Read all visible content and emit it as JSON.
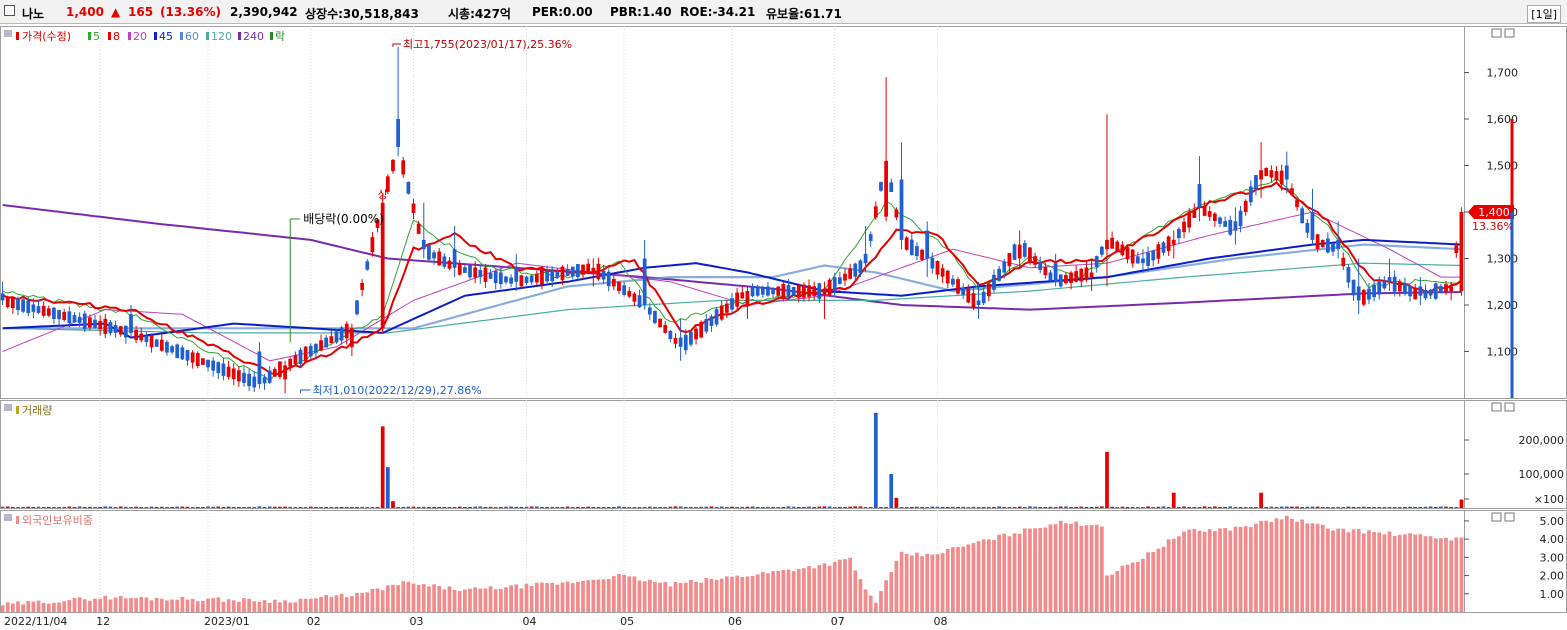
{
  "header": {
    "name": "나노",
    "price": "1,400",
    "change_arrow": "▲",
    "change": "165",
    "change_pct": "(13.36%)",
    "volume": "2,390,942",
    "listed_shares": "상장수:30,518,843",
    "market_cap": "시총:427억",
    "per": "PER:0.00",
    "pbr": "PBR:1.40",
    "roe": "ROE:-34.21",
    "float_ratio": "유보율:61.71",
    "period": "[1일]"
  },
  "colors": {
    "up": "#e60000",
    "down": "#1f5fd0",
    "ma5": "#2ea82e",
    "ma8": "#e60000",
    "ma20": "#c040c0",
    "ma45": "#0a1fc8",
    "ma60": "#5a8ad0",
    "ma120": "#4aaea0",
    "ma240": "#7a2ab0",
    "foreign": "#f28c8c"
  },
  "chart_data": [
    {
      "type": "candlestick",
      "legend_title": "가격(수정)",
      "legend": [
        "5",
        "8",
        "20",
        "45",
        "60",
        "120",
        "240",
        "락"
      ],
      "y_ticks": [
        "1,100",
        "1,200",
        "1,300",
        "1,400",
        "1,500",
        "1,600",
        "1,700"
      ],
      "ylim": [
        1000,
        1800
      ],
      "x_ticks": [
        "2022/11/04",
        "12",
        "2023/01",
        "02",
        "03",
        "04",
        "05",
        "06",
        "07",
        "08"
      ],
      "annotations": {
        "high": "최고1,755(2023/01/17),25.36%",
        "low": "최저1,010(2022/12/29),27.86%",
        "dividend": "배당락(0.00%)",
        "limit_up": "상",
        "last_price": "1,400",
        "last_pct": "13.36%"
      },
      "ohlc_keypoints": [
        [
          0,
          1225,
          1250,
          1200,
          1210
        ],
        [
          25,
          1180,
          1200,
          1130,
          1140
        ],
        [
          50,
          1100,
          1120,
          1020,
          1030
        ],
        [
          55,
          1040,
          1080,
          1010,
          1070
        ],
        [
          68,
          1110,
          1160,
          1090,
          1150
        ],
        [
          74,
          1150,
          1440,
          1140,
          1420
        ],
        [
          77,
          1600,
          1755,
          1520,
          1540
        ],
        [
          82,
          1340,
          1420,
          1300,
          1320
        ],
        [
          88,
          1320,
          1370,
          1260,
          1280
        ],
        [
          100,
          1280,
          1310,
          1230,
          1250
        ],
        [
          115,
          1270,
          1300,
          1240,
          1280
        ],
        [
          125,
          1300,
          1340,
          1190,
          1200
        ],
        [
          132,
          1130,
          1170,
          1080,
          1110
        ],
        [
          145,
          1200,
          1240,
          1170,
          1230
        ],
        [
          160,
          1220,
          1250,
          1170,
          1230
        ],
        [
          168,
          1310,
          1370,
          1270,
          1290
        ],
        [
          172,
          1390,
          1690,
          1380,
          1510
        ],
        [
          175,
          1470,
          1550,
          1320,
          1340
        ],
        [
          180,
          1360,
          1380,
          1260,
          1300
        ],
        [
          190,
          1210,
          1250,
          1170,
          1200
        ],
        [
          198,
          1300,
          1360,
          1280,
          1330
        ],
        [
          205,
          1290,
          1310,
          1240,
          1250
        ],
        [
          212,
          1260,
          1300,
          1230,
          1270
        ],
        [
          215,
          1320,
          1610,
          1240,
          1340
        ],
        [
          222,
          1300,
          1320,
          1270,
          1290
        ],
        [
          228,
          1330,
          1360,
          1300,
          1340
        ],
        [
          233,
          1460,
          1520,
          1380,
          1410
        ],
        [
          240,
          1380,
          1410,
          1330,
          1360
        ],
        [
          245,
          1470,
          1550,
          1430,
          1490
        ],
        [
          250,
          1500,
          1530,
          1440,
          1470
        ],
        [
          255,
          1400,
          1450,
          1330,
          1340
        ],
        [
          260,
          1340,
          1380,
          1300,
          1320
        ],
        [
          264,
          1240,
          1300,
          1180,
          1210
        ],
        [
          270,
          1260,
          1300,
          1230,
          1250
        ],
        [
          276,
          1240,
          1260,
          1200,
          1220
        ],
        [
          282,
          1230,
          1250,
          1210,
          1240
        ],
        [
          284,
          1230,
          1410,
          1220,
          1400
        ]
      ],
      "ma_keypoints": {
        "ma5": [
          [
            0,
            1230
          ],
          [
            25,
            1180
          ],
          [
            52,
            1040
          ],
          [
            60,
            1090
          ],
          [
            74,
            1180
          ],
          [
            80,
            1380
          ],
          [
            85,
            1340
          ],
          [
            95,
            1280
          ],
          [
            110,
            1260
          ],
          [
            120,
            1290
          ],
          [
            130,
            1160
          ],
          [
            140,
            1200
          ],
          [
            160,
            1230
          ],
          [
            172,
            1420
          ],
          [
            178,
            1370
          ],
          [
            185,
            1310
          ],
          [
            190,
            1230
          ],
          [
            200,
            1300
          ],
          [
            210,
            1260
          ],
          [
            215,
            1300
          ],
          [
            230,
            1400
          ],
          [
            248,
            1470
          ],
          [
            258,
            1370
          ],
          [
            266,
            1240
          ],
          [
            275,
            1250
          ],
          [
            284,
            1250
          ]
        ],
        "ma8": [
          [
            0,
            1220
          ],
          [
            25,
            1190
          ],
          [
            53,
            1050
          ],
          [
            65,
            1100
          ],
          [
            74,
            1150
          ],
          [
            80,
            1320
          ],
          [
            88,
            1350
          ],
          [
            100,
            1280
          ],
          [
            115,
            1270
          ],
          [
            123,
            1300
          ],
          [
            132,
            1140
          ],
          [
            145,
            1200
          ],
          [
            165,
            1240
          ],
          [
            174,
            1360
          ],
          [
            182,
            1350
          ],
          [
            190,
            1240
          ],
          [
            200,
            1290
          ],
          [
            215,
            1300
          ],
          [
            235,
            1420
          ],
          [
            248,
            1460
          ],
          [
            258,
            1380
          ],
          [
            266,
            1260
          ],
          [
            278,
            1230
          ],
          [
            284,
            1250
          ]
        ],
        "ma20": [
          [
            0,
            1100
          ],
          [
            20,
            1190
          ],
          [
            35,
            1180
          ],
          [
            52,
            1080
          ],
          [
            65,
            1110
          ],
          [
            80,
            1210
          ],
          [
            100,
            1290
          ],
          [
            115,
            1270
          ],
          [
            130,
            1250
          ],
          [
            145,
            1200
          ],
          [
            160,
            1220
          ],
          [
            175,
            1280
          ],
          [
            185,
            1320
          ],
          [
            200,
            1280
          ],
          [
            215,
            1290
          ],
          [
            235,
            1350
          ],
          [
            255,
            1400
          ],
          [
            270,
            1320
          ],
          [
            280,
            1260
          ],
          [
            284,
            1260
          ]
        ],
        "ma45": [
          [
            0,
            1150
          ],
          [
            20,
            1160
          ],
          [
            25,
            1130
          ],
          [
            45,
            1160
          ],
          [
            60,
            1150
          ],
          [
            74,
            1140
          ],
          [
            90,
            1220
          ],
          [
            110,
            1250
          ],
          [
            125,
            1280
          ],
          [
            135,
            1290
          ],
          [
            145,
            1270
          ],
          [
            160,
            1230
          ],
          [
            175,
            1220
          ],
          [
            190,
            1240
          ],
          [
            215,
            1260
          ],
          [
            235,
            1300
          ],
          [
            255,
            1330
          ],
          [
            265,
            1340
          ],
          [
            284,
            1330
          ]
        ],
        "ma60": [
          [
            0,
            1150
          ],
          [
            30,
            1150
          ],
          [
            60,
            1150
          ],
          [
            80,
            1150
          ],
          [
            110,
            1240
          ],
          [
            130,
            1260
          ],
          [
            150,
            1260
          ],
          [
            160,
            1285
          ],
          [
            170,
            1270
          ],
          [
            185,
            1230
          ],
          [
            215,
            1260
          ],
          [
            240,
            1300
          ],
          [
            265,
            1330
          ],
          [
            284,
            1320
          ]
        ],
        "ma120": [
          [
            0,
            1150
          ],
          [
            40,
            1140
          ],
          [
            75,
            1140
          ],
          [
            110,
            1190
          ],
          [
            140,
            1210
          ],
          [
            170,
            1210
          ],
          [
            200,
            1230
          ],
          [
            230,
            1260
          ],
          [
            265,
            1290
          ],
          [
            284,
            1285
          ]
        ],
        "ma240": [
          [
            0,
            1415
          ],
          [
            30,
            1375
          ],
          [
            60,
            1340
          ],
          [
            75,
            1300
          ],
          [
            100,
            1280
          ],
          [
            125,
            1260
          ],
          [
            150,
            1235
          ],
          [
            175,
            1200
          ],
          [
            200,
            1190
          ],
          [
            230,
            1205
          ],
          [
            265,
            1225
          ],
          [
            284,
            1228
          ]
        ]
      }
    },
    {
      "type": "bar",
      "legend_title": "거래량",
      "y_ticks": [
        "200,000",
        "100,000",
        "×100"
      ],
      "spikes": [
        [
          74,
          2400
        ],
        [
          75,
          1200
        ],
        [
          76,
          200
        ],
        [
          170,
          2800
        ],
        [
          173,
          1000
        ],
        [
          174,
          300
        ],
        [
          215,
          1650
        ],
        [
          228,
          450
        ],
        [
          245,
          450
        ],
        [
          284,
          250
        ]
      ]
    },
    {
      "type": "bar",
      "legend_title": "외국인보유비중",
      "y_ticks": [
        "5.00",
        "4.00",
        "3.00",
        "2.00",
        "1.00"
      ],
      "keypoints": [
        [
          0,
          0.4
        ],
        [
          20,
          0.8
        ],
        [
          40,
          0.7
        ],
        [
          55,
          0.6
        ],
        [
          70,
          1.0
        ],
        [
          78,
          1.6
        ],
        [
          90,
          1.2
        ],
        [
          110,
          1.6
        ],
        [
          120,
          2.0
        ],
        [
          130,
          1.5
        ],
        [
          150,
          2.2
        ],
        [
          160,
          2.6
        ],
        [
          165,
          2.9
        ],
        [
          168,
          1.2
        ],
        [
          170,
          0.6
        ],
        [
          175,
          3.2
        ],
        [
          180,
          3.1
        ],
        [
          195,
          4.2
        ],
        [
          205,
          4.9
        ],
        [
          214,
          4.8
        ],
        [
          215,
          2.0
        ],
        [
          222,
          3.0
        ],
        [
          230,
          4.4
        ],
        [
          240,
          4.6
        ],
        [
          250,
          5.2
        ],
        [
          258,
          4.6
        ],
        [
          270,
          4.3
        ],
        [
          284,
          4.0
        ]
      ]
    }
  ]
}
